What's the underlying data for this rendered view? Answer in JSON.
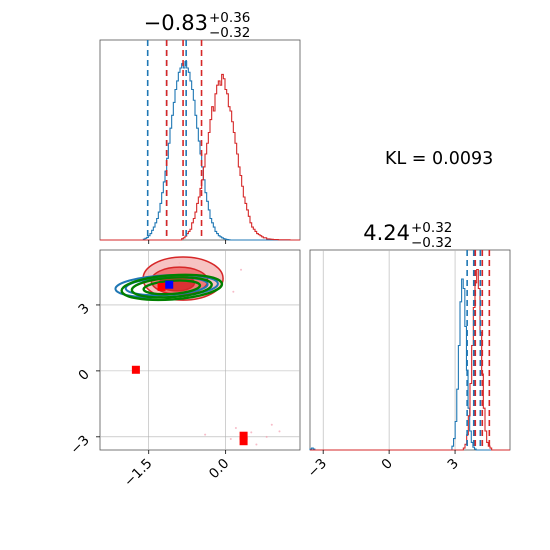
{
  "chart_data": {
    "type": "corner",
    "annotation": "KL = 0.0093",
    "colors": {
      "series_a": "#d62728",
      "series_b": "#1f77b4",
      "contour_green": "#008000",
      "truth_a": "#ff0000",
      "truth_b": "#0000ff",
      "grid": "#b0b0b0"
    },
    "grid": true,
    "params": [
      {
        "title_main": "−0.83",
        "title_plus": "+0.36",
        "title_minus": "−0.32",
        "range": [
          -2.45,
          1.45
        ],
        "ticks": [
          -1.5,
          0.0
        ],
        "tick_labels": [
          "−1.5",
          "0.0"
        ],
        "red_quantiles": [
          -1.15,
          -0.83,
          -0.47
        ],
        "blue_quantiles": [
          -1.52,
          -1.15,
          -0.77
        ]
      },
      {
        "title_main": "4.24",
        "title_plus": "+0.32",
        "title_minus": "−0.32",
        "range": [
          -3.6,
          5.5
        ],
        "ticks": [
          -3,
          0,
          3
        ],
        "tick_labels": [
          "−3",
          "0",
          "3"
        ],
        "red_quantiles": [
          3.92,
          4.24,
          4.56
        ],
        "blue_quantiles": [
          3.55,
          3.85,
          4.15
        ]
      }
    ],
    "hist_1d": {
      "param1": {
        "red": [
          0,
          0,
          0,
          0,
          0,
          0,
          0,
          0,
          0,
          0,
          0,
          0,
          0,
          0,
          0,
          0,
          0,
          0,
          0,
          0,
          0,
          0,
          0,
          0,
          0,
          0,
          0,
          0,
          0,
          0,
          0,
          0,
          0,
          0,
          0,
          0,
          0,
          0,
          0,
          0,
          0,
          0,
          0,
          0,
          0,
          0,
          0,
          0,
          0,
          0.006,
          0.01,
          0.018,
          0.03,
          0.04,
          0.05,
          0.08,
          0.1,
          0.13,
          0.17,
          0.2,
          0.24,
          0.28,
          0.34,
          0.4,
          0.45,
          0.5,
          0.56,
          0.62,
          0.6,
          0.68,
          0.72,
          0.74,
          0.72,
          0.77,
          0.75,
          0.7,
          0.68,
          0.62,
          0.6,
          0.55,
          0.5,
          0.45,
          0.4,
          0.34,
          0.3,
          0.25,
          0.2,
          0.17,
          0.14,
          0.11,
          0.08,
          0.06,
          0.05,
          0.04,
          0.03,
          0.025,
          0.02,
          0.015,
          0.01,
          0.01,
          0.005,
          0.005,
          0.004,
          0.003,
          0.002,
          0.002,
          0.002,
          0.001,
          0.001,
          0.001,
          0.001,
          0.001,
          0.001,
          0.001,
          0,
          0,
          0,
          0,
          0,
          0
        ],
        "blue": [
          0,
          0,
          0,
          0,
          0,
          0,
          0,
          0,
          0,
          0,
          0,
          0,
          0,
          0,
          0,
          0,
          0,
          0,
          0,
          0,
          0,
          0,
          0,
          0,
          0,
          0,
          0.004,
          0.008,
          0.012,
          0.02,
          0.03,
          0.045,
          0.06,
          0.08,
          0.1,
          0.13,
          0.17,
          0.22,
          0.27,
          0.32,
          0.38,
          0.45,
          0.52,
          0.58,
          0.64,
          0.7,
          0.74,
          0.78,
          0.8,
          0.82,
          0.8,
          0.83,
          0.8,
          0.78,
          0.74,
          0.7,
          0.65,
          0.58,
          0.52,
          0.46,
          0.4,
          0.34,
          0.28,
          0.22,
          0.18,
          0.14,
          0.1,
          0.08,
          0.06,
          0.04,
          0.03,
          0.02,
          0.015,
          0.01,
          0.006,
          0.004,
          0.002,
          0.001,
          0,
          0,
          0,
          0,
          0,
          0,
          0,
          0,
          0,
          0,
          0,
          0,
          0,
          0,
          0,
          0,
          0,
          0,
          0,
          0,
          0,
          0,
          0,
          0,
          0,
          0,
          0,
          0,
          0,
          0,
          0,
          0,
          0,
          0,
          0,
          0,
          0,
          0,
          0,
          0,
          0,
          0
        ]
      },
      "param2": {
        "red": [
          0,
          0,
          0,
          0,
          0,
          0,
          0,
          0,
          0,
          0,
          0,
          0,
          0,
          0,
          0,
          0,
          0,
          0,
          0,
          0,
          0,
          0,
          0,
          0,
          0,
          0,
          0,
          0,
          0,
          0,
          0,
          0,
          0,
          0,
          0,
          0,
          0,
          0,
          0,
          0,
          0,
          0,
          0,
          0,
          0,
          0,
          0,
          0,
          0,
          0,
          0,
          0,
          0,
          0,
          0,
          0,
          0,
          0,
          0,
          0,
          0,
          0,
          0,
          0,
          0,
          0,
          0,
          0,
          0,
          0,
          0,
          0,
          0,
          0,
          0,
          0,
          0,
          0,
          0,
          0,
          0,
          0,
          0,
          0,
          0,
          0,
          0,
          0,
          0,
          0,
          0,
          0,
          0.01,
          0.03,
          0.08,
          0.18,
          0.35,
          0.55,
          0.75,
          0.88,
          0.95,
          0.85,
          0.62,
          0.4,
          0.22,
          0.1,
          0.04,
          0.02,
          0.01,
          0,
          0,
          0,
          0,
          0,
          0,
          0,
          0,
          0,
          0,
          0
        ],
        "blue": [
          0.005,
          0.01,
          0.005,
          0,
          0,
          0,
          0,
          0,
          0,
          0,
          0,
          0,
          0,
          0,
          0,
          0,
          0,
          0,
          0,
          0,
          0,
          0,
          0,
          0,
          0,
          0,
          0,
          0,
          0,
          0,
          0,
          0,
          0,
          0,
          0,
          0,
          0,
          0,
          0,
          0,
          0,
          0,
          0,
          0,
          0,
          0,
          0,
          0,
          0,
          0,
          0,
          0,
          0,
          0,
          0,
          0,
          0,
          0,
          0,
          0,
          0,
          0,
          0,
          0,
          0,
          0,
          0,
          0,
          0,
          0,
          0,
          0,
          0,
          0,
          0,
          0,
          0,
          0,
          0,
          0,
          0,
          0,
          0,
          0,
          0,
          0,
          0,
          0,
          0.02,
          0.06,
          0.15,
          0.32,
          0.55,
          0.78,
          0.9,
          0.85,
          0.65,
          0.42,
          0.22,
          0.1,
          0.04,
          0.015,
          0.005,
          0,
          0,
          0,
          0,
          0,
          0,
          0,
          0,
          0,
          0,
          0,
          0,
          0,
          0,
          0,
          0,
          0,
          0,
          0,
          0,
          0
        ]
      }
    },
    "joint": {
      "red_contours": [
        {
          "cx": -0.83,
          "cy": 4.2,
          "rx": 0.78,
          "ry": 0.98,
          "rot": 0
        },
        {
          "cx": -0.9,
          "cy": 4.1,
          "rx": 0.55,
          "ry": 0.62,
          "rot": 0
        },
        {
          "cx": -0.95,
          "cy": 4.0,
          "rx": 0.34,
          "ry": 0.36,
          "rot": 0
        }
      ],
      "blue_contours": [
        {
          "cx": -1.15,
          "cy": 3.85,
          "rx": 1.0,
          "ry": 0.5,
          "rot": -3
        },
        {
          "cx": -1.15,
          "cy": 3.85,
          "rx": 0.8,
          "ry": 0.4,
          "rot": -3
        }
      ],
      "green_contours": [
        {
          "cx": -1.05,
          "cy": 3.8,
          "rx": 0.98,
          "ry": 0.55,
          "rot": -4
        },
        {
          "cx": -1.05,
          "cy": 3.8,
          "rx": 0.78,
          "ry": 0.44,
          "rot": -4
        },
        {
          "cx": -1.05,
          "cy": 3.8,
          "rx": 0.55,
          "ry": 0.3,
          "rot": -4
        }
      ],
      "truth_points": [
        {
          "x": -1.75,
          "y": 0.05,
          "color": "truth_a"
        },
        {
          "x": 0.35,
          "y": -2.95,
          "color": "truth_a"
        },
        {
          "x": 0.35,
          "y": -3.2,
          "color": "truth_a"
        },
        {
          "x": -1.25,
          "y": 3.82,
          "color": "truth_a"
        },
        {
          "x": -1.1,
          "y": 3.92,
          "color": "truth_b"
        }
      ],
      "scatter_points": [
        {
          "x": 0.2,
          "y": -2.6
        },
        {
          "x": 0.5,
          "y": -2.8
        },
        {
          "x": 0.8,
          "y": -3.0
        },
        {
          "x": 1.05,
          "y": -2.75
        },
        {
          "x": -0.4,
          "y": -2.9
        },
        {
          "x": 0.6,
          "y": -3.35
        },
        {
          "x": 0.9,
          "y": -2.45
        },
        {
          "x": 0.1,
          "y": -3.1
        },
        {
          "x": -0.9,
          "y": 4.9
        },
        {
          "x": 0.3,
          "y": 4.6
        },
        {
          "x": -0.2,
          "y": 4.7
        },
        {
          "x": 0.15,
          "y": 3.6
        }
      ]
    }
  }
}
